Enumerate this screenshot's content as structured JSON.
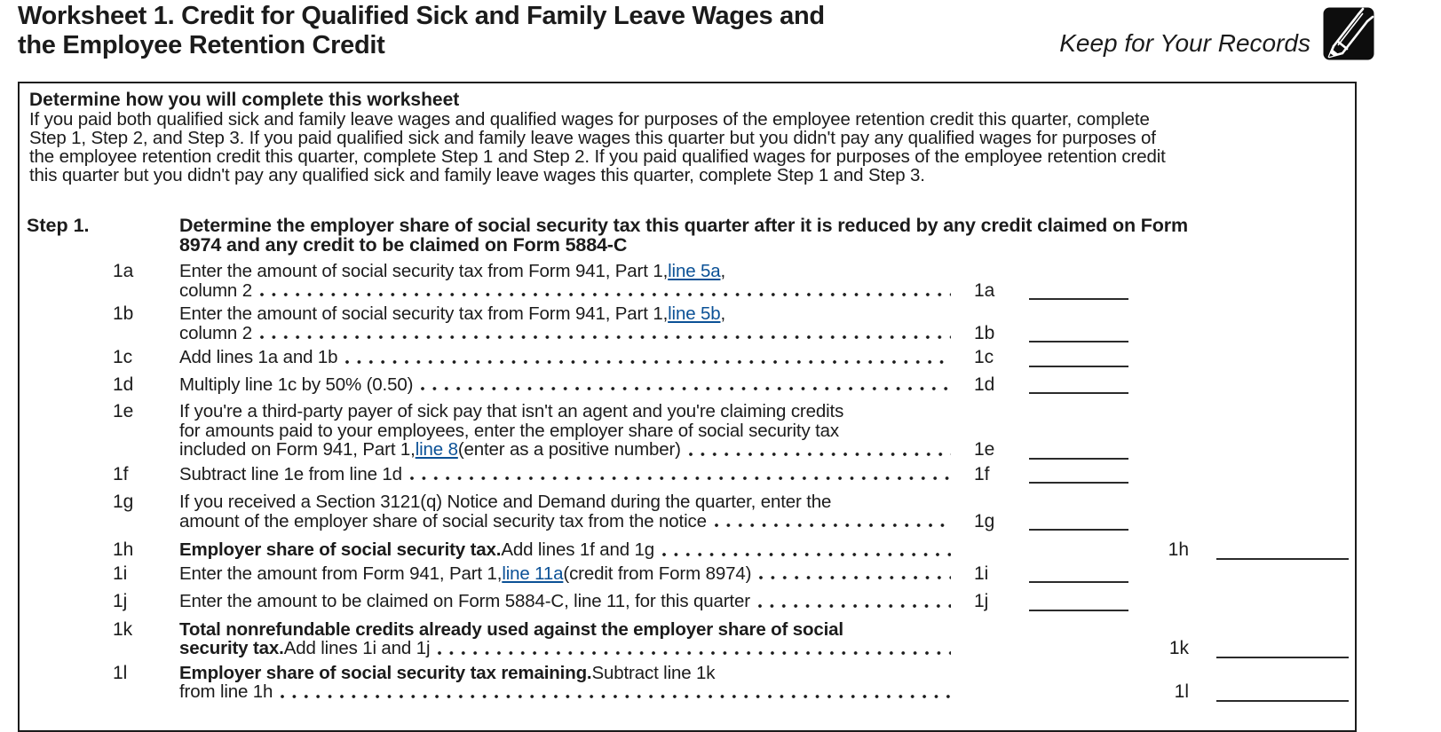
{
  "header": {
    "title_line1": "Worksheet 1. Credit for Qualified Sick and Family Leave Wages and",
    "title_line2": "the Employee Retention Credit",
    "keep_note": "Keep for Your Records",
    "icon": "pencil-icon"
  },
  "intro": {
    "heading": "Determine how you will complete this worksheet",
    "body_lines": [
      "If you paid both qualified sick and family leave wages and qualified wages for purposes of the employee retention credit this quarter, complete",
      "Step 1, Step 2, and Step 3. If you paid qualified sick and family leave wages this quarter but you didn't pay any qualified wages for purposes of",
      "the employee retention credit this quarter, complete Step 1 and Step 2. If you paid qualified wages for purposes of the employee retention credit",
      "this quarter but you didn't pay any qualified sick and family leave wages this quarter, complete Step 1 and Step 3."
    ]
  },
  "colors": {
    "link": "#0b5196",
    "text": "#1b1b1b"
  },
  "step1": {
    "label": "Step 1.",
    "heading_lines": [
      "Determine the employer share of social security tax this quarter after it is reduced by any credit claimed on Form",
      "8974 and any credit to be claimed on Form 5884-C"
    ],
    "items": [
      {
        "num": "1a",
        "amount_label": "1a",
        "amount_col": 1,
        "value": "",
        "lines": [
          [
            {
              "t": "Enter the amount of social security tax from Form 941, Part 1, "
            },
            {
              "t": "line 5a",
              "s": "link"
            },
            {
              "t": ","
            }
          ],
          [
            {
              "t": "column 2"
            }
          ]
        ]
      },
      {
        "num": "1b",
        "amount_label": "1b",
        "amount_col": 1,
        "value": "",
        "lines": [
          [
            {
              "t": "Enter the amount of social security tax from Form 941, Part 1, "
            },
            {
              "t": "line 5b",
              "s": "link"
            },
            {
              "t": ","
            }
          ],
          [
            {
              "t": "column 2"
            }
          ]
        ]
      },
      {
        "num": "1c",
        "amount_label": "1c",
        "amount_col": 1,
        "value": "",
        "lines": [
          [
            {
              "t": "Add lines 1a and 1b"
            }
          ]
        ]
      },
      {
        "num": "1d",
        "amount_label": "1d",
        "amount_col": 1,
        "value": "",
        "lines": [
          [
            {
              "t": "Multiply line 1c by 50% (0.50)"
            }
          ]
        ]
      },
      {
        "num": "1e",
        "amount_label": "1e",
        "amount_col": 1,
        "value": "",
        "lines": [
          [
            {
              "t": "If you're a third-party payer of sick pay that isn't an agent and you're claiming credits"
            }
          ],
          [
            {
              "t": "for amounts paid to your employees, enter the employer share of social security tax"
            }
          ],
          [
            {
              "t": "included on Form 941, Part 1, "
            },
            {
              "t": "line 8",
              "s": "link"
            },
            {
              "t": " (enter as a positive number)"
            }
          ]
        ]
      },
      {
        "num": "1f",
        "amount_label": "1f",
        "amount_col": 1,
        "value": "",
        "lines": [
          [
            {
              "t": "Subtract line 1e from line 1d"
            }
          ]
        ]
      },
      {
        "num": "1g",
        "amount_label": "1g",
        "amount_col": 1,
        "value": "",
        "lines": [
          [
            {
              "t": "If you received a Section 3121(q) Notice and Demand during the quarter, enter the"
            }
          ],
          [
            {
              "t": "amount of the employer share of social security tax from the notice"
            }
          ]
        ]
      },
      {
        "num": "1h",
        "amount_label": "1h",
        "amount_col": 2,
        "value": "",
        "lines": [
          [
            {
              "t": "Employer share of social security tax.",
              "s": "bold"
            },
            {
              "t": " Add lines 1f and 1g"
            }
          ]
        ]
      },
      {
        "num": "1i",
        "amount_label": "1i",
        "amount_col": 1,
        "value": "",
        "lines": [
          [
            {
              "t": "Enter the amount from Form 941, Part 1, "
            },
            {
              "t": "line 11a",
              "s": "link"
            },
            {
              "t": " (credit from Form 8974)"
            }
          ]
        ]
      },
      {
        "num": "1j",
        "amount_label": "1j",
        "amount_col": 1,
        "value": "",
        "lines": [
          [
            {
              "t": "Enter the amount to be claimed on Form 5884-C, line 11, for this quarter"
            }
          ]
        ]
      },
      {
        "num": "1k",
        "amount_label": "1k",
        "amount_col": 2,
        "value": "",
        "lines": [
          [
            {
              "t": "Total nonrefundable credits already used against the employer share of social",
              "s": "bold"
            }
          ],
          [
            {
              "t": "security tax.",
              "s": "bold"
            },
            {
              "t": " Add lines 1i and 1j"
            }
          ]
        ]
      },
      {
        "num": "1l",
        "amount_label": "1l",
        "amount_col": 2,
        "value": "",
        "lines": [
          [
            {
              "t": "Employer share of social security tax remaining.",
              "s": "bold"
            },
            {
              "t": " Subtract line 1k"
            }
          ],
          [
            {
              "t": "from line 1h"
            }
          ]
        ]
      }
    ]
  }
}
